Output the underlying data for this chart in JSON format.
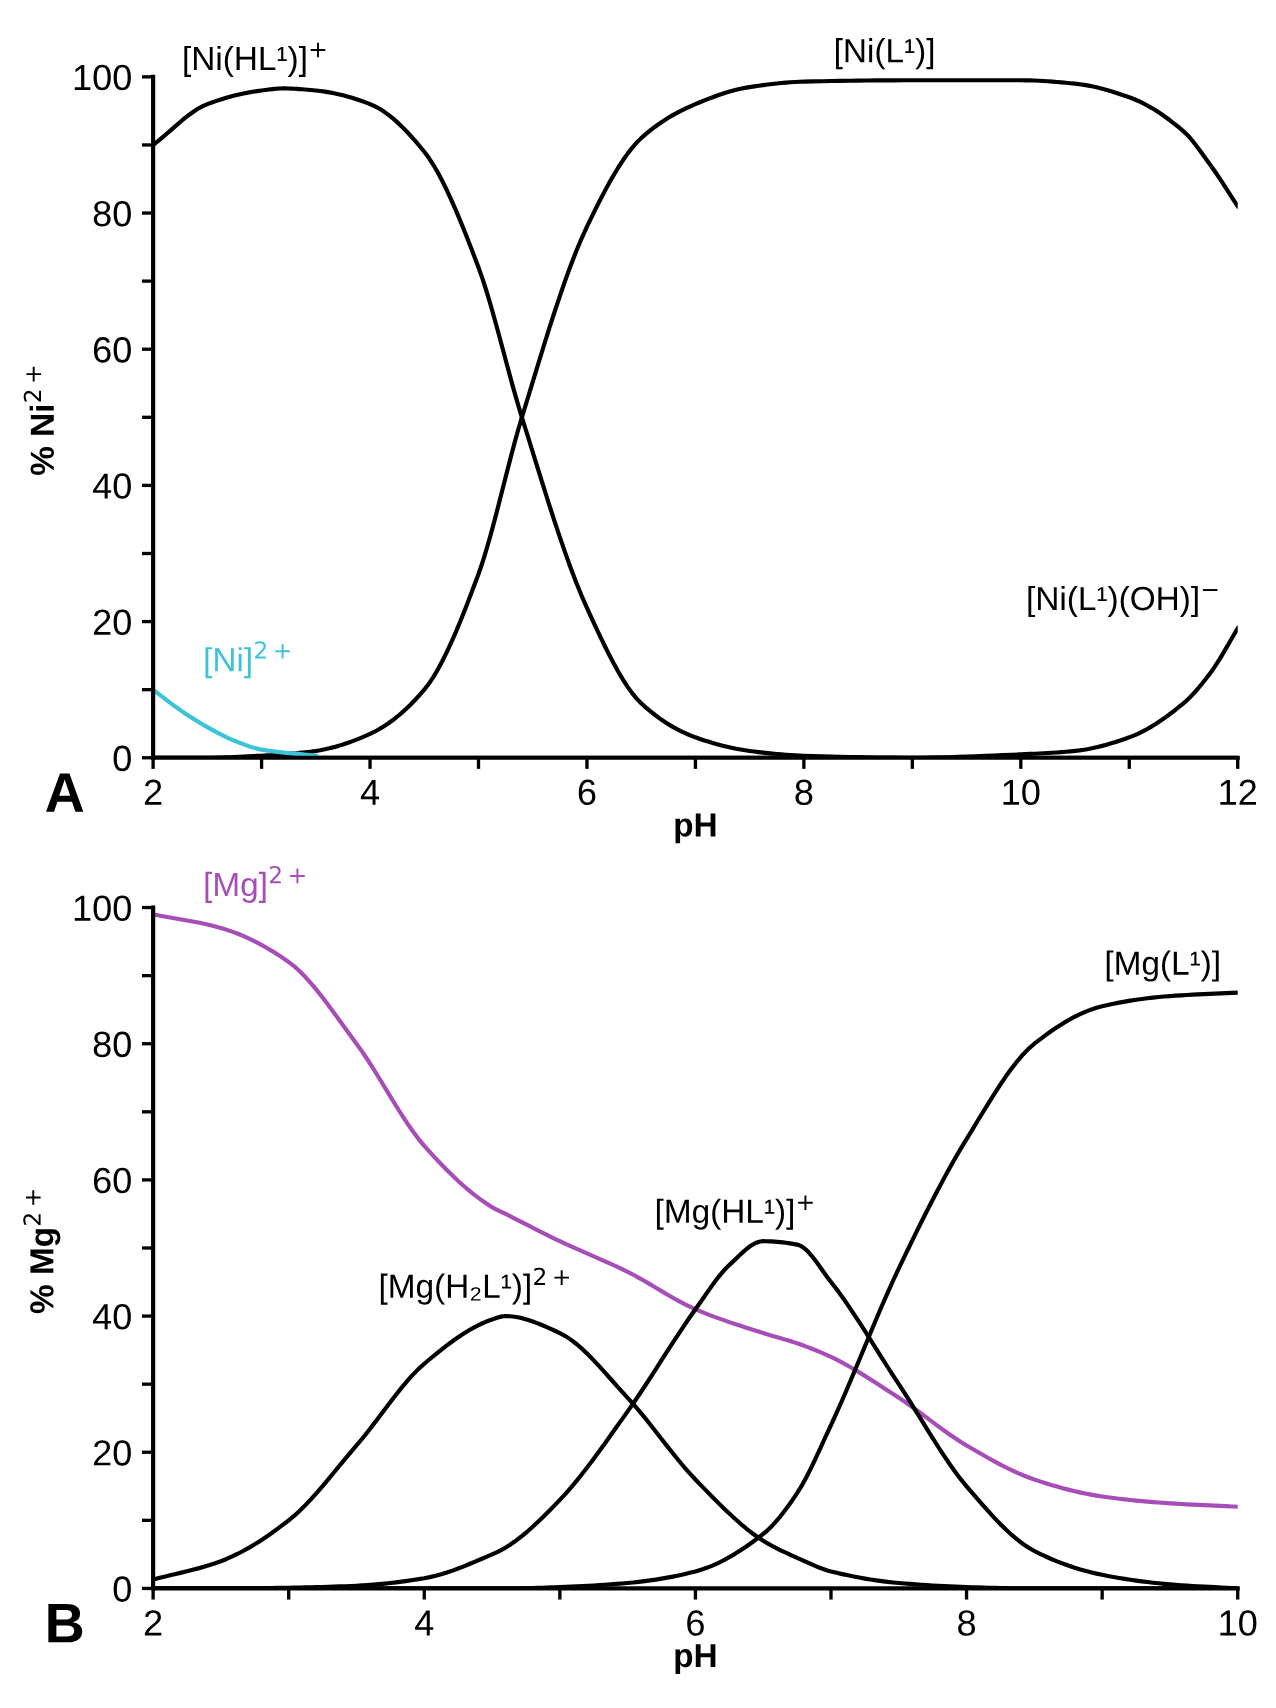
{
  "chart_data": [
    {
      "type": "line",
      "xlabel": "pH",
      "ylabel": "% Ni$^{2+}$",
      "annotations": [
        "A"
      ],
      "xlim": [
        2,
        12
      ],
      "ylim": [
        0,
        100
      ],
      "xticks": [
        2,
        {
          "value": 3,
          "label": null
        },
        4,
        {
          "value": 5,
          "label": null
        },
        6,
        {
          "value": 7,
          "label": null
        },
        8,
        {
          "value": 9,
          "label": null
        },
        10,
        {
          "value": 11,
          "label": null
        },
        12
      ],
      "yticks": [
        0,
        {
          "value": 10,
          "label": null
        },
        20,
        {
          "value": 30,
          "label": null
        },
        40,
        {
          "value": 50,
          "label": null
        },
        60,
        {
          "value": 70,
          "label": null
        },
        80,
        {
          "value": 90,
          "label": null
        },
        100
      ],
      "grid": false,
      "legend": false,
      "marker": "none",
      "line_style": "solid",
      "x": [
        2,
        2.5,
        3,
        3.2,
        3.5,
        4,
        4.5,
        5,
        5.4,
        6,
        6.5,
        7,
        7.5,
        8,
        9,
        10,
        10.5,
        11,
        11.5,
        11.75,
        12
      ],
      "series": [
        {
          "name": "[Ni(HL¹)]$^{+}$",
          "color": "#000000",
          "values": [
            90,
            96,
            98,
            98.3,
            98,
            96,
            89,
            72,
            50,
            22,
            8,
            3,
            1,
            0.3,
            0,
            0,
            0,
            0,
            0,
            0,
            0
          ]
        },
        {
          "name": "[Ni(L¹)]",
          "color": "#000000",
          "values": [
            0,
            0,
            0.3,
            0.5,
            1,
            3.5,
            10,
            27,
            50,
            78,
            91,
            96,
            98.5,
            99.3,
            99.5,
            99.5,
            99,
            97,
            92,
            87,
            81
          ]
        },
        {
          "name": "[Ni(L¹)(OH)]$^{−}$",
          "color": "#000000",
          "values": [
            0,
            0,
            0,
            0,
            0,
            0,
            0,
            0,
            0,
            0,
            0,
            0,
            0,
            0,
            0,
            0.5,
            1,
            3,
            8,
            12.5,
            19
          ]
        },
        {
          "name": "[Ni]$^{2+}$",
          "color": "#3bc4d8",
          "x": [
            2,
            2.25,
            2.5,
            2.75,
            3,
            3.5
          ],
          "values": [
            10,
            7,
            4.5,
            2.5,
            1.2,
            0.3
          ]
        }
      ]
    },
    {
      "type": "line",
      "xlabel": "pH",
      "ylabel": "% Mg$^{2+}$",
      "annotations": [
        "B"
      ],
      "xlim": [
        2,
        10
      ],
      "ylim": [
        0,
        100
      ],
      "xticks": [
        2,
        {
          "value": 3,
          "label": null
        },
        4,
        {
          "value": 5,
          "label": null
        },
        6,
        {
          "value": 7,
          "label": null
        },
        8,
        {
          "value": 9,
          "label": null
        },
        10
      ],
      "yticks": [
        0,
        {
          "value": 10,
          "label": null
        },
        20,
        {
          "value": 30,
          "label": null
        },
        40,
        {
          "value": 50,
          "label": null
        },
        60,
        {
          "value": 70,
          "label": null
        },
        80,
        {
          "value": 90,
          "label": null
        },
        100
      ],
      "grid": false,
      "legend": false,
      "marker": "none",
      "line_style": "solid",
      "x": [
        2,
        2.5,
        3,
        3.5,
        4,
        4.5,
        4.6,
        5,
        5.5,
        6,
        6.5,
        6.75,
        7,
        7.5,
        8,
        8.5,
        9,
        9.5,
        10
      ],
      "series": [
        {
          "name": "[Mg]$^{2+}$",
          "color": "#a64db8",
          "values": [
            99,
            97,
            92,
            80,
            65,
            56,
            55,
            51,
            46.5,
            41,
            37.5,
            36,
            34,
            28,
            21,
            16,
            13.5,
            12.5,
            12
          ]
        },
        {
          "name": "[Mg(H₂L¹)]$^{2+}$",
          "color": "#000000",
          "values": [
            1.3,
            4,
            10,
            21,
            33,
            39.5,
            40,
            37.5,
            28,
            16,
            7,
            4.5,
            2.5,
            0.8,
            0.2,
            0,
            0,
            0,
            0
          ]
        },
        {
          "name": "[Mg(HL¹)]$^{+}$",
          "color": "#000000",
          "x": [
            2,
            2.5,
            3,
            3.5,
            4,
            4.5,
            4.6,
            5,
            5.5,
            6,
            6.25,
            6.5,
            6.75,
            7,
            7.5,
            8,
            8.5,
            9,
            9.5,
            10
          ],
          "values": [
            0,
            0,
            0.1,
            0.4,
            1.5,
            5,
            6,
            13,
            26,
            41,
            47.5,
            51,
            50.5,
            45,
            30,
            15,
            5.5,
            2,
            0.6,
            0
          ]
        },
        {
          "name": "[Mg(L¹)]",
          "color": "#000000",
          "values": [
            0,
            0,
            0,
            0,
            0,
            0,
            0,
            0.2,
            0.8,
            2.5,
            8,
            14,
            24,
            47,
            66,
            80,
            85.5,
            87,
            87.5
          ]
        }
      ]
    }
  ]
}
